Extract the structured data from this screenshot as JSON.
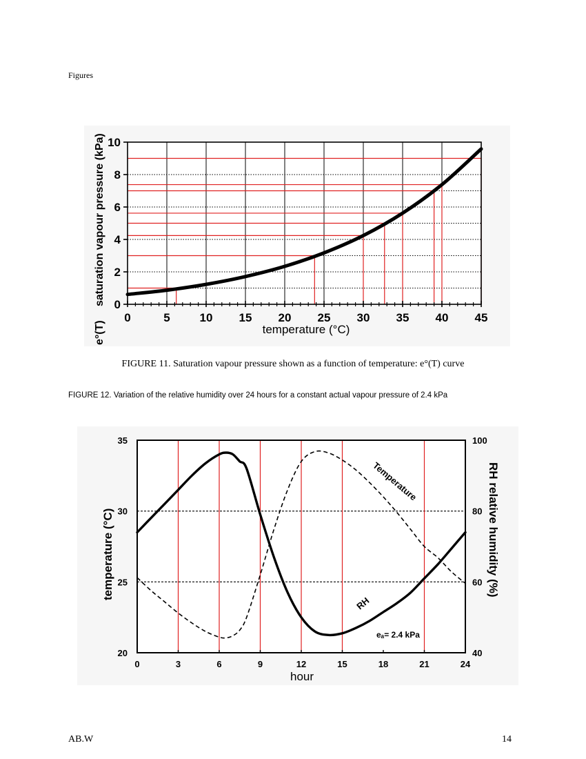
{
  "header": {
    "text": "Figures"
  },
  "figure11": {
    "caption": "FIGURE 11. Saturation vapour pressure shown as a function of temperature: e°(T) curve"
  },
  "figure12": {
    "caption": "FIGURE 12. Variation of the relative humidity over 24 hours for a constant actual vapour pressure of 2.4 kPa"
  },
  "footer": {
    "left": "AB.W",
    "page": "14"
  },
  "chart_data": [
    {
      "type": "line",
      "title": "",
      "xlabel": "temperature  (°C)",
      "ylabel": "saturation vapour pressure   (kPa)",
      "ylabel_prefix": "e°(T)",
      "xlim": [
        0,
        45
      ],
      "ylim": [
        0,
        10
      ],
      "x_ticks": [
        0,
        5,
        10,
        15,
        20,
        25,
        30,
        35,
        40,
        45
      ],
      "y_ticks": [
        0,
        2,
        4,
        6,
        8,
        10
      ],
      "grid": true,
      "series": [
        {
          "x": [
            0,
            5,
            10,
            15,
            20,
            25,
            30,
            35,
            40,
            45
          ],
          "y": [
            0.61,
            0.87,
            1.23,
            1.71,
            2.34,
            3.17,
            4.24,
            5.62,
            7.38,
            9.58
          ]
        }
      ],
      "annotation_lines": [
        {
          "x": 6.2,
          "y": 1.0
        },
        {
          "x": 23.8,
          "y": 3.0
        },
        {
          "x": 30.0,
          "y": 4.24
        },
        {
          "x": 32.7,
          "y": 5.0
        },
        {
          "x": 35.0,
          "y": 5.62
        },
        {
          "x": 39.0,
          "y": 7.0
        },
        {
          "x": 40.0,
          "y": 7.38
        },
        {
          "x": 45.0,
          "y": 9.0
        }
      ],
      "colors": {
        "curve": "#000000",
        "annotation": "#e02020"
      }
    },
    {
      "type": "line",
      "title": "",
      "xlabel": "hour",
      "ylabel_left": "temperature (°C)",
      "ylabel_right": "RH  relative humidity (%)",
      "xlim": [
        0,
        24
      ],
      "ylim_left": [
        20,
        35
      ],
      "ylim_right": [
        40,
        100
      ],
      "x_ticks": [
        0,
        3,
        6,
        9,
        12,
        15,
        18,
        21,
        24
      ],
      "y_ticks_left": [
        20,
        25,
        30,
        35
      ],
      "y_ticks_right": [
        40,
        60,
        80,
        100
      ],
      "vertical_lines": [
        3,
        6,
        9,
        12,
        15,
        21
      ],
      "series": [
        {
          "name": "RH",
          "axis": "right",
          "style": "solid",
          "x": [
            0,
            1,
            2,
            3,
            4,
            5,
            6,
            6.5,
            7,
            7.5,
            8,
            9,
            10,
            11,
            12,
            13,
            14,
            15,
            16,
            17,
            18,
            19,
            20,
            21,
            22,
            23,
            24
          ],
          "y": [
            74,
            78,
            82,
            86,
            90,
            93.5,
            96,
            96.5,
            96,
            94,
            92,
            79,
            67,
            57,
            50,
            46,
            45,
            45.5,
            47,
            49,
            51.5,
            54,
            57,
            61,
            65,
            69.5,
            74
          ]
        },
        {
          "name": "Temperature",
          "axis": "left",
          "style": "dashed",
          "x": [
            0,
            1,
            2,
            3,
            4,
            5,
            6,
            6.5,
            7,
            7.5,
            8,
            9,
            10,
            11,
            12,
            13,
            14,
            15,
            16,
            17,
            18,
            19,
            20,
            21,
            22,
            23,
            24
          ],
          "y": [
            25.3,
            24.4,
            23.6,
            22.8,
            22.1,
            21.5,
            21.1,
            21.05,
            21.2,
            21.6,
            22.5,
            25.5,
            28.7,
            31.5,
            33.5,
            34.2,
            34.1,
            33.6,
            32.9,
            32.0,
            31.0,
            29.9,
            28.7,
            27.5,
            26.7,
            25.7,
            24.9
          ]
        }
      ],
      "labels": {
        "rh": "RH",
        "temperature": "Temperature",
        "ea": "eₐ= 2.4 kPa"
      },
      "colors": {
        "curve": "#000000",
        "grid_lines": "#e02020"
      }
    }
  ]
}
